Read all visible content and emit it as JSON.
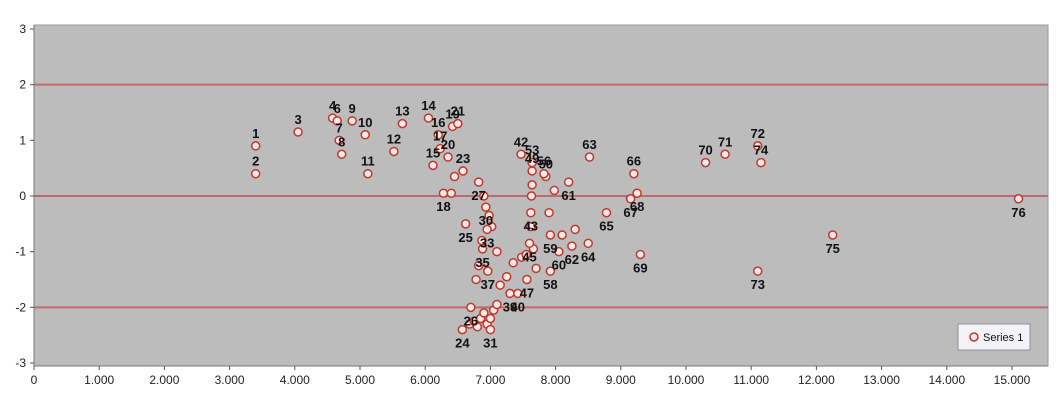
{
  "chart_data": {
    "type": "scatter",
    "title": "",
    "xlabel": "",
    "ylabel": "",
    "xlim": [
      0,
      15500
    ],
    "ylim": [
      -3,
      3
    ],
    "x_ticks": [
      0,
      1000,
      2000,
      3000,
      4000,
      5000,
      6000,
      7000,
      8000,
      9000,
      10000,
      11000,
      12000,
      13000,
      14000,
      15000
    ],
    "x_tick_labels": [
      "0",
      "1.000",
      "2.000",
      "3.000",
      "4.000",
      "5.000",
      "6.000",
      "7.000",
      "8.000",
      "9.000",
      "10.000",
      "11.000",
      "12.000",
      "13.000",
      "14.000",
      "15.000"
    ],
    "y_ticks": [
      -3,
      -2,
      -1,
      0,
      1,
      2,
      3
    ],
    "y_tick_labels": [
      "-3",
      "-2",
      "-1",
      "0",
      "1",
      "2",
      "3"
    ],
    "reference_lines": [
      2,
      0,
      -2
    ],
    "grid": false,
    "legend": {
      "position": "bottom-right",
      "entries": [
        "Series 1"
      ]
    },
    "colors": {
      "plot_background": "#bcbcbc",
      "reference_line": "#c26a6a",
      "marker_fill": "#ffe8e8",
      "marker_edge": "#c0392b"
    },
    "series": [
      {
        "name": "Series 1",
        "points": [
          {
            "label": "1",
            "x": 3400,
            "y": 0.9
          },
          {
            "label": "2",
            "x": 3400,
            "y": 0.4
          },
          {
            "label": "3",
            "x": 4050,
            "y": 1.15
          },
          {
            "label": "4",
            "x": 4580,
            "y": 1.4
          },
          {
            "label": "6",
            "x": 4650,
            "y": 1.35
          },
          {
            "label": "7",
            "x": 4680,
            "y": 1.0
          },
          {
            "label": "8",
            "x": 4720,
            "y": 0.75
          },
          {
            "label": "9",
            "x": 4880,
            "y": 1.35
          },
          {
            "label": "10",
            "x": 5080,
            "y": 1.1
          },
          {
            "label": "11",
            "x": 5120,
            "y": 0.4
          },
          {
            "label": "12",
            "x": 5520,
            "y": 0.8
          },
          {
            "label": "13",
            "x": 5650,
            "y": 1.3
          },
          {
            "label": "14",
            "x": 6050,
            "y": 1.4
          },
          {
            "label": "15",
            "x": 6120,
            "y": 0.55
          },
          {
            "label": "16",
            "x": 6200,
            "y": 1.1
          },
          {
            "label": "17",
            "x": 6230,
            "y": 0.85
          },
          {
            "label": "18",
            "x": 6280,
            "y": 0.05
          },
          {
            "label": "19",
            "x": 6420,
            "y": 1.25
          },
          {
            "label": "20",
            "x": 6350,
            "y": 0.7
          },
          {
            "label": "21",
            "x": 6500,
            "y": 1.3
          },
          {
            "label": "23",
            "x": 6580,
            "y": 0.45
          },
          {
            "label": "24",
            "x": 6570,
            "y": -2.4
          },
          {
            "label": "25",
            "x": 6620,
            "y": -0.5
          },
          {
            "label": "26",
            "x": 6700,
            "y": -2.0
          },
          {
            "label": "27",
            "x": 6820,
            "y": 0.25
          },
          {
            "label": "30",
            "x": 6930,
            "y": -0.2
          },
          {
            "label": "31",
            "x": 7000,
            "y": -2.4
          },
          {
            "label": "33",
            "x": 6950,
            "y": -0.6
          },
          {
            "label": "35",
            "x": 6880,
            "y": -0.95
          },
          {
            "label": "37",
            "x": 6960,
            "y": -1.35
          },
          {
            "label": "39",
            "x": 7300,
            "y": -1.75
          },
          {
            "label": "40",
            "x": 7420,
            "y": -1.75
          },
          {
            "label": "42",
            "x": 7470,
            "y": 0.75
          },
          {
            "label": "43",
            "x": 7620,
            "y": -0.3
          },
          {
            "label": "45",
            "x": 7600,
            "y": -0.85
          },
          {
            "label": "47",
            "x": 7560,
            "y": -1.5
          },
          {
            "label": "49",
            "x": 7640,
            "y": 0.45
          },
          {
            "label": "50",
            "x": 7850,
            "y": 0.35
          },
          {
            "label": "53",
            "x": 7640,
            "y": 0.6
          },
          {
            "label": "56",
            "x": 7820,
            "y": 0.4
          },
          {
            "label": "58",
            "x": 7920,
            "y": -1.35
          },
          {
            "label": "59",
            "x": 7920,
            "y": -0.7
          },
          {
            "label": "60",
            "x": 8050,
            "y": -1.0
          },
          {
            "label": "61",
            "x": 8200,
            "y": 0.25
          },
          {
            "label": "62",
            "x": 8250,
            "y": -0.9
          },
          {
            "label": "63",
            "x": 8520,
            "y": 0.7
          },
          {
            "label": "64",
            "x": 8500,
            "y": -0.85
          },
          {
            "label": "65",
            "x": 8780,
            "y": -0.3
          },
          {
            "label": "66",
            "x": 9200,
            "y": 0.4
          },
          {
            "label": "67",
            "x": 9150,
            "y": -0.05
          },
          {
            "label": "68",
            "x": 9250,
            "y": 0.05
          },
          {
            "label": "69",
            "x": 9300,
            "y": -1.05
          },
          {
            "label": "70",
            "x": 10300,
            "y": 0.6
          },
          {
            "label": "71",
            "x": 10600,
            "y": 0.75
          },
          {
            "label": "72",
            "x": 11100,
            "y": 0.9
          },
          {
            "label": "73",
            "x": 11100,
            "y": -1.35
          },
          {
            "label": "74",
            "x": 11150,
            "y": 0.6
          },
          {
            "label": "75",
            "x": 12250,
            "y": -0.7
          },
          {
            "label": "76",
            "x": 15100,
            "y": -0.05
          }
        ],
        "extra_points": [
          {
            "x": 6680,
            "y": -2.3
          },
          {
            "x": 6750,
            "y": -2.25
          },
          {
            "x": 6800,
            "y": -2.35
          },
          {
            "x": 6850,
            "y": -2.2
          },
          {
            "x": 6900,
            "y": -2.1
          },
          {
            "x": 6950,
            "y": -2.3
          },
          {
            "x": 7000,
            "y": -2.2
          },
          {
            "x": 7050,
            "y": -2.05
          },
          {
            "x": 7100,
            "y": -1.95
          },
          {
            "x": 6780,
            "y": -1.5
          },
          {
            "x": 6820,
            "y": -1.25
          },
          {
            "x": 6870,
            "y": -0.8
          },
          {
            "x": 6900,
            "y": 0.0
          },
          {
            "x": 6980,
            "y": -0.35
          },
          {
            "x": 7020,
            "y": -0.55
          },
          {
            "x": 7100,
            "y": -1.0
          },
          {
            "x": 7150,
            "y": -1.6
          },
          {
            "x": 7250,
            "y": -1.45
          },
          {
            "x": 7350,
            "y": -1.2
          },
          {
            "x": 7480,
            "y": -1.1
          },
          {
            "x": 7550,
            "y": -1.05
          },
          {
            "x": 7620,
            "y": -0.55
          },
          {
            "x": 7630,
            "y": 0.0
          },
          {
            "x": 7640,
            "y": 0.2
          },
          {
            "x": 7700,
            "y": -1.3
          },
          {
            "x": 7660,
            "y": -0.95
          },
          {
            "x": 7900,
            "y": -0.3
          },
          {
            "x": 8100,
            "y": -0.7
          },
          {
            "x": 8300,
            "y": -0.6
          },
          {
            "x": 7980,
            "y": 0.1
          },
          {
            "x": 6400,
            "y": 0.05
          },
          {
            "x": 6450,
            "y": 0.35
          }
        ]
      }
    ]
  }
}
